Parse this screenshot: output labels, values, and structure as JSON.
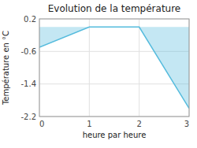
{
  "chart_data": {
    "type": "area",
    "title": "Evolution de la température",
    "xlabel": "heure par heure",
    "ylabel": "Température en °C",
    "x": [
      0,
      1,
      2,
      3
    ],
    "values": [
      -0.5,
      0.0,
      0.0,
      -2.0
    ],
    "color": "#55bbdd",
    "xlim": [
      0,
      3
    ],
    "ylim": [
      -2.2,
      0.2
    ],
    "xticks": [
      0,
      1,
      2,
      3
    ],
    "yticks": [
      0.2,
      -0.6,
      -1.4,
      -2.2
    ],
    "grid": true
  }
}
